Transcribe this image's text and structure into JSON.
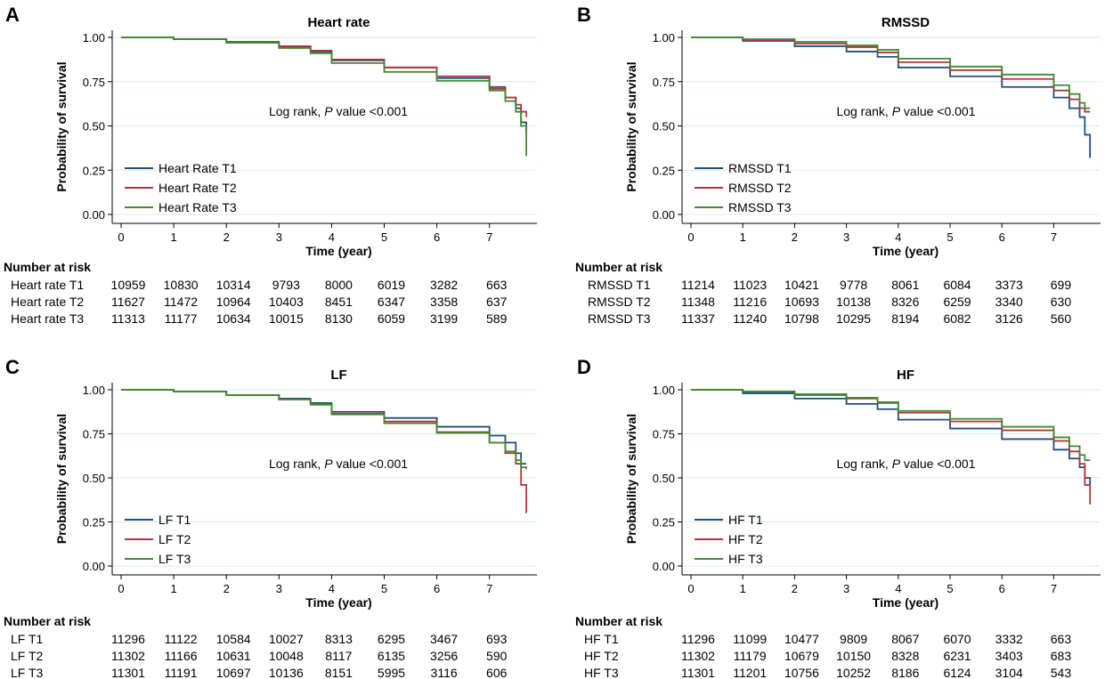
{
  "layout_note": "2x2 grid of Kaplan-Meier survival curves with number-at-risk tables",
  "colors": {
    "T1": "#1f4e79",
    "T2": "#b0353f",
    "T3": "#3f8a2f",
    "grid": "#d9ece9"
  },
  "common": {
    "ylabel": "Probability of survival",
    "xlabel": "Time (year)",
    "annotation_prefix": "Log rank, ",
    "annotation_p": "P",
    "annotation_suffix": " value <0.001",
    "risk_header": "Number at risk",
    "yticks": [
      "1.00",
      "0.75",
      "0.50",
      "0.25",
      "0.00"
    ],
    "xticks": [
      "0",
      "1",
      "2",
      "3",
      "4",
      "5",
      "6",
      "7"
    ]
  },
  "chart_data": [
    {
      "panel": "A",
      "type": "line",
      "title": "Heart rate",
      "xlabel": "Time (year)",
      "ylabel": "Probability of survival",
      "xlim": [
        0,
        7.8
      ],
      "ylim": [
        0,
        1.0
      ],
      "series": [
        {
          "name": "Heart Rate T1",
          "risk_label": "Heart rate T1",
          "x": [
            0,
            1,
            2,
            3,
            3.6,
            4,
            5,
            6,
            7,
            7.3,
            7.5,
            7.6,
            7.7
          ],
          "y": [
            1.0,
            0.99,
            0.975,
            0.945,
            0.92,
            0.87,
            0.83,
            0.77,
            0.72,
            0.66,
            0.6,
            0.52,
            0.46
          ],
          "risk": [
            "10959",
            "10830",
            "10314",
            "9793",
            "8000",
            "6019",
            "3282",
            "663"
          ]
        },
        {
          "name": "Heart Rate T2",
          "risk_label": "Heart rate T2",
          "x": [
            0,
            1,
            2,
            3,
            3.6,
            4,
            5,
            6,
            7,
            7.3,
            7.5,
            7.6,
            7.7
          ],
          "y": [
            1.0,
            0.99,
            0.97,
            0.95,
            0.925,
            0.875,
            0.83,
            0.78,
            0.71,
            0.66,
            0.62,
            0.58,
            0.55
          ],
          "risk": [
            "11627",
            "11472",
            "10964",
            "10403",
            "8451",
            "6347",
            "3358",
            "637"
          ]
        },
        {
          "name": "Heart Rate T3",
          "risk_label": "Heart rate T3",
          "x": [
            0,
            1,
            2,
            3,
            3.6,
            4,
            5,
            6,
            7,
            7.3,
            7.5,
            7.6,
            7.7
          ],
          "y": [
            1.0,
            0.99,
            0.97,
            0.94,
            0.91,
            0.855,
            0.805,
            0.755,
            0.7,
            0.64,
            0.58,
            0.5,
            0.33
          ],
          "risk": [
            "11313",
            "11177",
            "10634",
            "10015",
            "8130",
            "6059",
            "3199",
            "589"
          ]
        }
      ]
    },
    {
      "panel": "B",
      "type": "line",
      "title": "RMSSD",
      "xlabel": "Time (year)",
      "ylabel": "Probability of survival",
      "xlim": [
        0,
        7.8
      ],
      "ylim": [
        0,
        1.0
      ],
      "series": [
        {
          "name": "RMSSD T1",
          "risk_label": "RMSSD T1",
          "x": [
            0,
            1,
            2,
            3,
            3.6,
            4,
            5,
            6,
            7,
            7.3,
            7.5,
            7.6,
            7.7
          ],
          "y": [
            1.0,
            0.98,
            0.95,
            0.92,
            0.89,
            0.83,
            0.78,
            0.72,
            0.66,
            0.6,
            0.55,
            0.45,
            0.32
          ],
          "risk": [
            "11214",
            "11023",
            "10421",
            "9778",
            "8061",
            "6084",
            "3373",
            "699"
          ]
        },
        {
          "name": "RMSSD T2",
          "risk_label": "RMSSD T2",
          "x": [
            0,
            1,
            2,
            3,
            3.6,
            4,
            5,
            6,
            7,
            7.3,
            7.5,
            7.6,
            7.7
          ],
          "y": [
            1.0,
            0.985,
            0.965,
            0.945,
            0.915,
            0.86,
            0.815,
            0.765,
            0.7,
            0.65,
            0.6,
            0.58,
            0.58
          ],
          "risk": [
            "11348",
            "11216",
            "10693",
            "10138",
            "8326",
            "6259",
            "3340",
            "630"
          ]
        },
        {
          "name": "RMSSD T3",
          "risk_label": "RMSSD T3",
          "x": [
            0,
            1,
            2,
            3,
            3.6,
            4,
            5,
            6,
            7,
            7.3,
            7.5,
            7.6,
            7.7
          ],
          "y": [
            1.0,
            0.99,
            0.975,
            0.955,
            0.93,
            0.88,
            0.835,
            0.79,
            0.73,
            0.68,
            0.63,
            0.6,
            0.6
          ],
          "risk": [
            "11337",
            "11240",
            "10798",
            "10295",
            "8194",
            "6082",
            "3126",
            "560"
          ]
        }
      ]
    },
    {
      "panel": "C",
      "type": "line",
      "title": "LF",
      "xlabel": "Time (year)",
      "ylabel": "Probability of survival",
      "xlim": [
        0,
        7.8
      ],
      "ylim": [
        0,
        1.0
      ],
      "series": [
        {
          "name": "LF T1",
          "risk_label": "LF T1",
          "x": [
            0,
            1,
            2,
            3,
            3.6,
            4,
            5,
            6,
            7,
            7.3,
            7.5,
            7.6,
            7.7
          ],
          "y": [
            1.0,
            0.99,
            0.97,
            0.95,
            0.925,
            0.875,
            0.84,
            0.79,
            0.74,
            0.7,
            0.64,
            0.58,
            0.58
          ],
          "risk": [
            "11296",
            "11122",
            "10584",
            "10027",
            "8313",
            "6295",
            "3467",
            "693"
          ]
        },
        {
          "name": "LF T2",
          "risk_label": "LF T2",
          "x": [
            0,
            1,
            2,
            3,
            3.6,
            4,
            5,
            6,
            7,
            7.3,
            7.5,
            7.6,
            7.7
          ],
          "y": [
            1.0,
            0.99,
            0.97,
            0.945,
            0.92,
            0.865,
            0.82,
            0.76,
            0.7,
            0.64,
            0.58,
            0.46,
            0.3
          ],
          "risk": [
            "11302",
            "11166",
            "10631",
            "10048",
            "8117",
            "6135",
            "3256",
            "590"
          ]
        },
        {
          "name": "LF T3",
          "risk_label": "LF T3",
          "x": [
            0,
            1,
            2,
            3,
            3.6,
            4,
            5,
            6,
            7,
            7.3,
            7.5,
            7.6,
            7.7
          ],
          "y": [
            1.0,
            0.99,
            0.97,
            0.945,
            0.915,
            0.86,
            0.81,
            0.755,
            0.7,
            0.65,
            0.6,
            0.56,
            0.55
          ],
          "risk": [
            "11301",
            "11191",
            "10697",
            "10136",
            "8151",
            "5995",
            "3116",
            "606"
          ]
        }
      ]
    },
    {
      "panel": "D",
      "type": "line",
      "title": "HF",
      "xlabel": "Time (year)",
      "ylabel": "Probability of survival",
      "xlim": [
        0,
        7.8
      ],
      "ylim": [
        0,
        1.0
      ],
      "series": [
        {
          "name": "HF T1",
          "risk_label": "HF T1",
          "x": [
            0,
            1,
            2,
            3,
            3.6,
            4,
            5,
            6,
            7,
            7.3,
            7.5,
            7.6,
            7.7
          ],
          "y": [
            1.0,
            0.98,
            0.95,
            0.92,
            0.89,
            0.83,
            0.78,
            0.72,
            0.66,
            0.61,
            0.56,
            0.5,
            0.46
          ],
          "risk": [
            "11296",
            "11099",
            "10477",
            "9809",
            "8067",
            "6070",
            "3332",
            "663"
          ]
        },
        {
          "name": "HF T2",
          "risk_label": "HF T2",
          "x": [
            0,
            1,
            2,
            3,
            3.6,
            4,
            5,
            6,
            7,
            7.3,
            7.5,
            7.6,
            7.7
          ],
          "y": [
            1.0,
            0.99,
            0.97,
            0.95,
            0.925,
            0.87,
            0.82,
            0.77,
            0.71,
            0.65,
            0.58,
            0.46,
            0.35
          ],
          "risk": [
            "11302",
            "11179",
            "10679",
            "10150",
            "8328",
            "6231",
            "3403",
            "683"
          ]
        },
        {
          "name": "HF T3",
          "risk_label": "HF T3",
          "x": [
            0,
            1,
            2,
            3,
            3.6,
            4,
            5,
            6,
            7,
            7.3,
            7.5,
            7.6,
            7.7
          ],
          "y": [
            1.0,
            0.99,
            0.975,
            0.955,
            0.93,
            0.88,
            0.835,
            0.79,
            0.73,
            0.68,
            0.63,
            0.6,
            0.6
          ],
          "risk": [
            "11301",
            "11201",
            "10756",
            "10252",
            "8186",
            "6124",
            "3104",
            "543"
          ]
        }
      ]
    }
  ]
}
